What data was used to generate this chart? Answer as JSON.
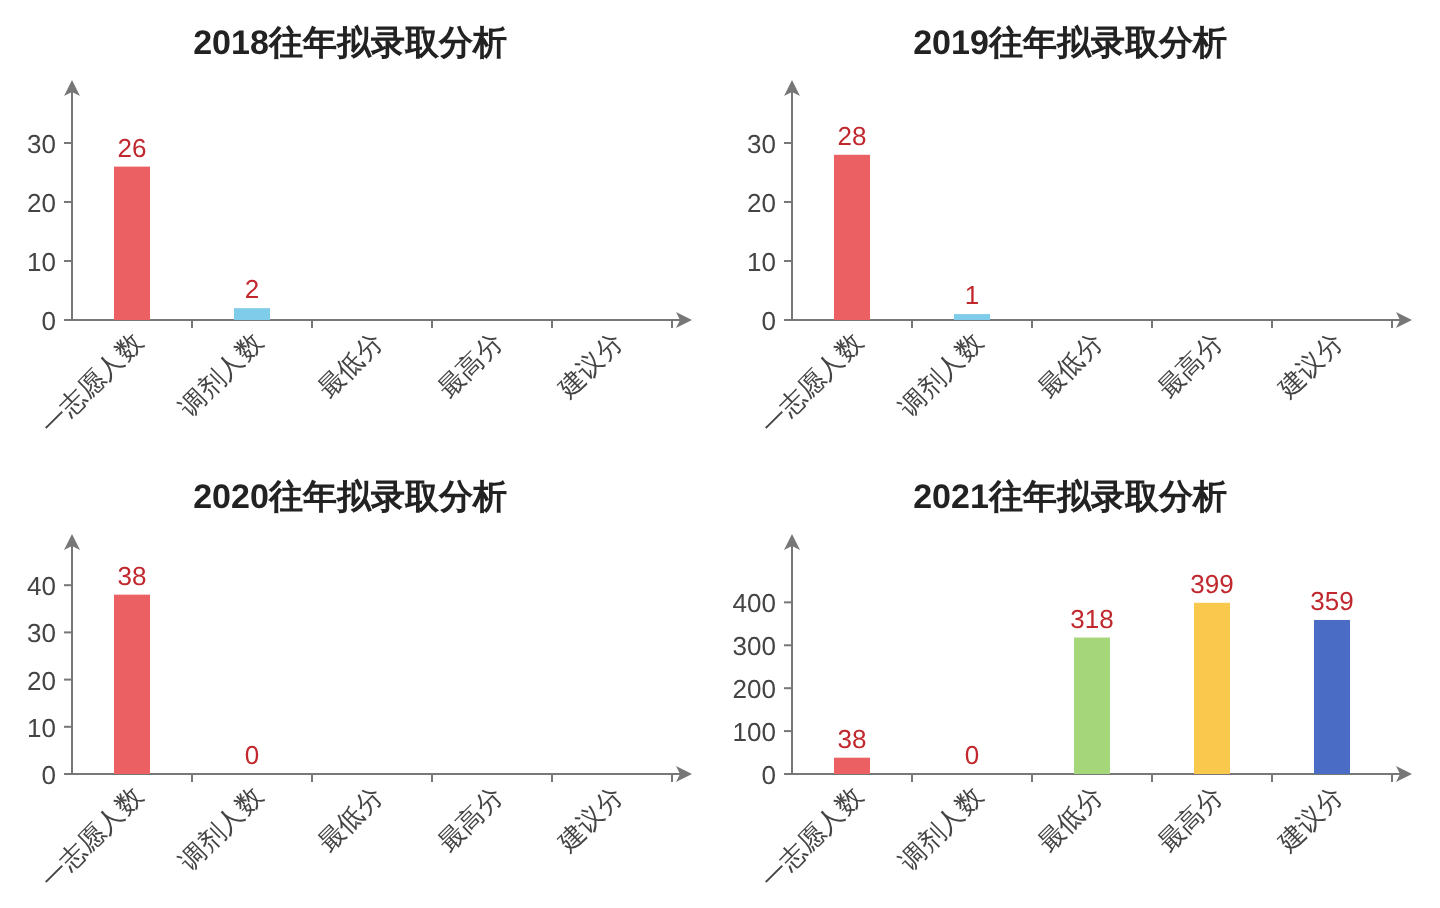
{
  "chart_data": [
    {
      "type": "bar",
      "title": "2018往年拟录取分析",
      "categories": [
        "一志愿人数",
        "调剂人数",
        "最低分",
        "最高分",
        "建议分"
      ],
      "values": [
        26,
        2,
        null,
        null,
        null
      ],
      "colors": [
        "#eb6163",
        "#7ecbea",
        null,
        null,
        null
      ],
      "ylim": [
        0,
        40
      ],
      "yticks": [
        0,
        10,
        20,
        30
      ],
      "data_labels": true
    },
    {
      "type": "bar",
      "title": "2019往年拟录取分析",
      "categories": [
        "一志愿人数",
        "调剂人数",
        "最低分",
        "最高分",
        "建议分"
      ],
      "values": [
        28,
        1,
        null,
        null,
        null
      ],
      "colors": [
        "#eb6163",
        "#7ecbea",
        null,
        null,
        null
      ],
      "ylim": [
        0,
        40
      ],
      "yticks": [
        0,
        10,
        20,
        30
      ],
      "data_labels": true
    },
    {
      "type": "bar",
      "title": "2020往年拟录取分析",
      "categories": [
        "一志愿人数",
        "调剂人数",
        "最低分",
        "最高分",
        "建议分"
      ],
      "values": [
        38,
        0,
        null,
        null,
        null
      ],
      "colors": [
        "#eb6163",
        "#7ecbea",
        null,
        null,
        null
      ],
      "ylim": [
        0,
        50
      ],
      "yticks": [
        0,
        10,
        20,
        30,
        40
      ],
      "data_labels": true
    },
    {
      "type": "bar",
      "title": "2021往年拟录取分析",
      "categories": [
        "一志愿人数",
        "调剂人数",
        "最低分",
        "最高分",
        "建议分"
      ],
      "values": [
        38,
        0,
        318,
        399,
        359
      ],
      "colors": [
        "#eb6163",
        "#7ecbea",
        "#a6d67a",
        "#f9c84c",
        "#4a6cc4"
      ],
      "ylim": [
        0,
        550
      ],
      "yticks": [
        0,
        100,
        200,
        300,
        400
      ],
      "data_labels": true
    }
  ]
}
